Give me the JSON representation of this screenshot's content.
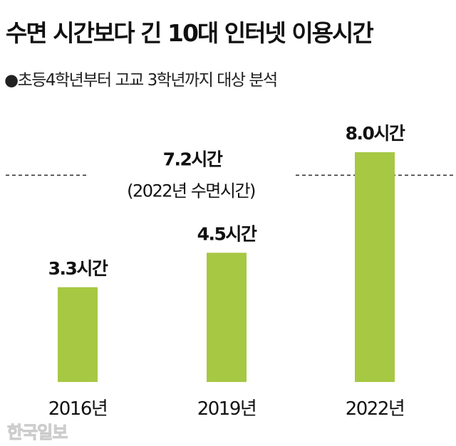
{
  "title": "수면 시간보다 긴 10대 인터넷 이용시간",
  "subtitle": "●초등4학년부터 고교 3학년까지 대상 분석",
  "watermark": "한국일보",
  "colors": {
    "bar": "#a6c843",
    "text": "#111111",
    "reference_line": "#222222"
  },
  "chart_data": {
    "type": "bar",
    "title": "수면 시간보다 긴 10대 인터넷 이용시간",
    "categories": [
      "2016년",
      "2019년",
      "2022년"
    ],
    "values": [
      3.3,
      4.5,
      8.0
    ],
    "data_labels": [
      "3.3시간",
      "4.5시간",
      "8.0시간"
    ],
    "ylim": [
      0,
      8.0
    ],
    "grid": false,
    "reference_line": {
      "value": 7.2,
      "label": "7.2시간",
      "sublabel": "(2022년 수면시간)",
      "style": "dashed"
    }
  }
}
